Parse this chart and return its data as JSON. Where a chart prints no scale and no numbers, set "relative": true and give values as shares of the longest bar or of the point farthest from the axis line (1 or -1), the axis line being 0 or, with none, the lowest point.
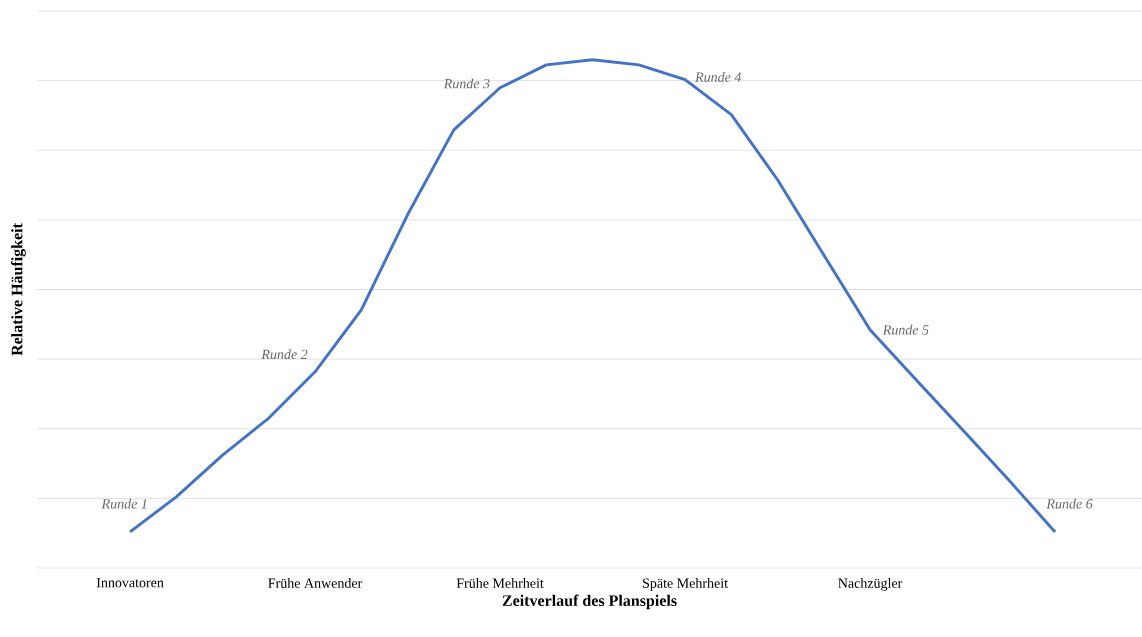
{
  "chart_data": {
    "type": "line",
    "relative": true,
    "xlabel": "Zeitverlauf des Planspiels",
    "ylabel": "Relative Häufigkeit",
    "categories": [
      "Innovatoren",
      null,
      null,
      null,
      "Frühe Anwender",
      null,
      null,
      null,
      "Frühe Mehrheit",
      null,
      null,
      null,
      "Späte Mehrheit",
      null,
      null,
      null,
      "Nachzügler",
      null,
      null,
      null,
      null
    ],
    "series": [
      {
        "color": "#4472c4",
        "values": [
          0.071,
          0.14,
          0.222,
          0.295,
          0.386,
          0.508,
          0.695,
          0.862,
          0.945,
          0.99,
          1.0,
          0.99,
          0.961,
          0.892,
          0.764,
          0.616,
          0.469,
          0.37,
          0.272,
          0.173,
          0.071
        ]
      }
    ],
    "annotations": [
      "Runde 1",
      "Runde 2",
      "Runde 3",
      "Runde 4",
      "Runde 5",
      "Runde 6"
    ],
    "grid": "y",
    "marker": "none",
    "line_style": "solid"
  }
}
